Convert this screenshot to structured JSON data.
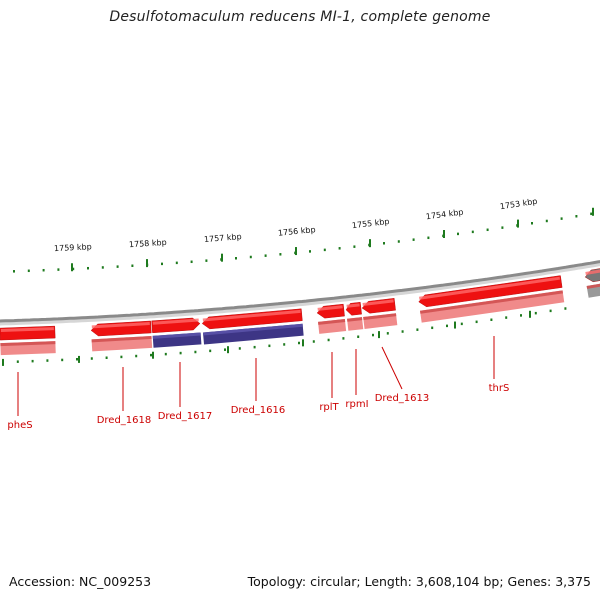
{
  "title": "Desulfotomaculum reducens MI-1, complete genome",
  "footer": {
    "accession": "Accession: NC_009253",
    "summary": "Topology: circular; Length: 3,608,104 bp; Genes: 3,375"
  },
  "colors": {
    "gene_forward": "#ee1111",
    "gene_forward_light": "#f08a8a",
    "cds_highlight": "#3d3585",
    "backbone": "#8a8a8a",
    "ticks": "#1e7a1e",
    "label": "#cc0000"
  },
  "scale_labels": [
    "1759 kbp",
    "1758 kbp",
    "1757 kbp",
    "1756 kbp",
    "1755 kbp",
    "1754 kbp",
    "1753 kbp"
  ],
  "genes": [
    {
      "name": "pheS"
    },
    {
      "name": "Dred_1618"
    },
    {
      "name": "Dred_1617"
    },
    {
      "name": "Dred_1616"
    },
    {
      "name": "rplT"
    },
    {
      "name": "rpmI"
    },
    {
      "name": "Dred_1613"
    },
    {
      "name": "thrS"
    }
  ]
}
